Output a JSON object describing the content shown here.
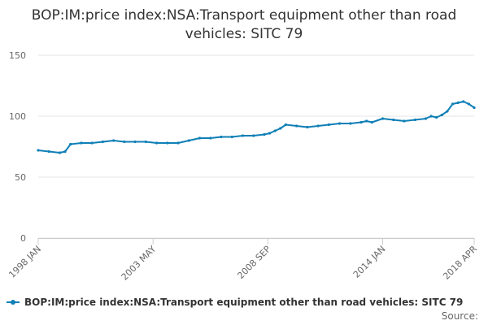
{
  "chart_data": {
    "type": "line",
    "title": "BOP:IM:price index:NSA:Transport equipment other than road vehicles: SITC 79",
    "xlabel": "",
    "ylabel": "",
    "ylim": [
      0,
      150
    ],
    "yticks": [
      0,
      50,
      100,
      150
    ],
    "xlim": [
      1998.0,
      2018.25
    ],
    "x_ticks": [
      {
        "label": "1998 JAN",
        "x": 1998.0
      },
      {
        "label": "2003 MAY",
        "x": 2003.333
      },
      {
        "label": "2008 SEP",
        "x": 2008.667
      },
      {
        "label": "2014 JAN",
        "x": 2014.0
      },
      {
        "label": "2018 APR",
        "x": 2018.25
      }
    ],
    "grid": true,
    "legend_position": "bottom-left",
    "source_label": "Source:",
    "series": [
      {
        "name": "BOP:IM:price index:NSA:Transport equipment other than road vehicles: SITC 79",
        "color": "#0f7fb6",
        "x": [
          1998.0,
          1998.5,
          1999.0,
          1999.25,
          1999.5,
          2000.0,
          2000.5,
          2001.0,
          2001.5,
          2002.0,
          2002.5,
          2003.0,
          2003.5,
          2004.0,
          2004.5,
          2005.0,
          2005.5,
          2006.0,
          2006.5,
          2007.0,
          2007.5,
          2008.0,
          2008.5,
          2008.75,
          2009.0,
          2009.25,
          2009.5,
          2010.0,
          2010.5,
          2011.0,
          2011.5,
          2012.0,
          2012.5,
          2013.0,
          2013.25,
          2013.5,
          2014.0,
          2014.5,
          2015.0,
          2015.5,
          2016.0,
          2016.25,
          2016.5,
          2016.75,
          2017.0,
          2017.25,
          2017.5,
          2017.75,
          2018.0,
          2018.25
        ],
        "values": [
          72,
          71,
          70,
          71,
          77,
          78,
          78,
          79,
          80,
          79,
          79,
          79,
          78,
          78,
          78,
          80,
          82,
          82,
          83,
          83,
          84,
          84,
          85,
          86,
          88,
          90,
          93,
          92,
          91,
          92,
          93,
          94,
          94,
          95,
          96,
          95,
          98,
          97,
          96,
          97,
          98,
          100,
          99,
          101,
          104,
          110,
          111,
          112,
          110,
          107
        ]
      }
    ]
  }
}
